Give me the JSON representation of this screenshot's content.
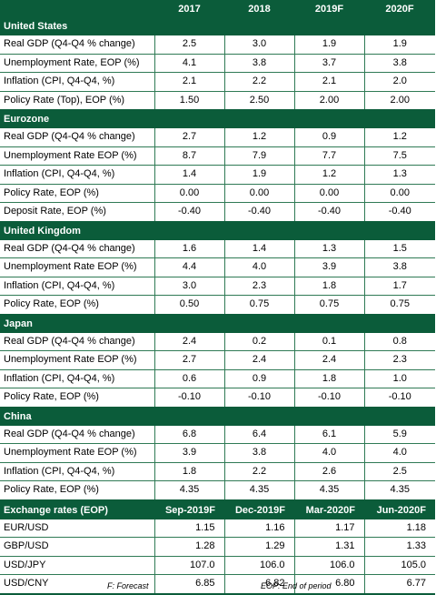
{
  "header": {
    "cols": [
      "2017",
      "2018",
      "2019F",
      "2020F"
    ]
  },
  "sections": [
    {
      "title": "United States",
      "rows": [
        {
          "label": "Real GDP (Q4-Q4 % change)",
          "values": [
            "2.5",
            "3.0",
            "1.9",
            "1.9"
          ]
        },
        {
          "label": "Unemployment Rate, EOP (%)",
          "values": [
            "4.1",
            "3.8",
            "3.7",
            "3.8"
          ]
        },
        {
          "label": "Inflation (CPI, Q4-Q4, %)",
          "values": [
            "2.1",
            "2.2",
            "2.1",
            "2.0"
          ]
        },
        {
          "label": "Policy Rate (Top), EOP (%)",
          "values": [
            "1.50",
            "2.50",
            "2.00",
            "2.00"
          ]
        }
      ]
    },
    {
      "title": "Eurozone",
      "rows": [
        {
          "label": "Real GDP (Q4-Q4 % change)",
          "values": [
            "2.7",
            "1.2",
            "0.9",
            "1.2"
          ]
        },
        {
          "label": "Unemployment Rate EOP (%)",
          "values": [
            "8.7",
            "7.9",
            "7.7",
            "7.5"
          ]
        },
        {
          "label": "Inflation (CPI, Q4-Q4, %)",
          "values": [
            "1.4",
            "1.9",
            "1.2",
            "1.3"
          ]
        },
        {
          "label": "Policy Rate, EOP (%)",
          "values": [
            "0.00",
            "0.00",
            "0.00",
            "0.00"
          ]
        },
        {
          "label": "Deposit Rate, EOP (%)",
          "values": [
            "-0.40",
            "-0.40",
            "-0.40",
            "-0.40"
          ]
        }
      ]
    },
    {
      "title": "United Kingdom",
      "rows": [
        {
          "label": "Real GDP (Q4-Q4 % change)",
          "values": [
            "1.6",
            "1.4",
            "1.3",
            "1.5"
          ]
        },
        {
          "label": "Unemployment Rate EOP (%)",
          "values": [
            "4.4",
            "4.0",
            "3.9",
            "3.8"
          ]
        },
        {
          "label": "Inflation (CPI, Q4-Q4, %)",
          "values": [
            "3.0",
            "2.3",
            "1.8",
            "1.7"
          ]
        },
        {
          "label": "Policy Rate, EOP (%)",
          "values": [
            "0.50",
            "0.75",
            "0.75",
            "0.75"
          ]
        }
      ]
    },
    {
      "title": "Japan",
      "rows": [
        {
          "label": "Real GDP (Q4-Q4 % change)",
          "values": [
            "2.4",
            "0.2",
            "0.1",
            "0.8"
          ]
        },
        {
          "label": "Unemployment Rate EOP (%)",
          "values": [
            "2.7",
            "2.4",
            "2.4",
            "2.3"
          ]
        },
        {
          "label": "Inflation (CPI, Q4-Q4, %)",
          "values": [
            "0.6",
            "0.9",
            "1.8",
            "1.0"
          ]
        },
        {
          "label": "Policy Rate, EOP (%)",
          "values": [
            "-0.10",
            "-0.10",
            "-0.10",
            "-0.10"
          ]
        }
      ]
    },
    {
      "title": "China",
      "rows": [
        {
          "label": "Real GDP (Q4-Q4 % change)",
          "values": [
            "6.8",
            "6.4",
            "6.1",
            "5.9"
          ]
        },
        {
          "label": "Unemployment Rate EOP (%)",
          "values": [
            "3.9",
            "3.8",
            "4.0",
            "4.0"
          ]
        },
        {
          "label": "Inflation (CPI, Q4-Q4, %)",
          "values": [
            "1.8",
            "2.2",
            "2.6",
            "2.5"
          ]
        },
        {
          "label": "Policy Rate, EOP (%)",
          "values": [
            "4.35",
            "4.35",
            "4.35",
            "4.35"
          ]
        }
      ]
    }
  ],
  "exchange": {
    "title": "Exchange rates (EOP)",
    "cols": [
      "Sep-2019F",
      "Dec-2019F",
      "Mar-2020F",
      "Jun-2020F"
    ],
    "rows": [
      {
        "label": "EUR/USD",
        "values": [
          "1.15",
          "1.16",
          "1.17",
          "1.18"
        ]
      },
      {
        "label": "GBP/USD",
        "values": [
          "1.28",
          "1.29",
          "1.31",
          "1.33"
        ]
      },
      {
        "label": "USD/JPY",
        "values": [
          "107.0",
          "106.0",
          "106.0",
          "105.0"
        ]
      },
      {
        "label": "USD/CNY",
        "values": [
          "6.85",
          "6.82",
          "6.80",
          "6.77"
        ]
      }
    ]
  },
  "footnotes": {
    "forecast": "F: Forecast",
    "eop": "EOP: End of period"
  }
}
